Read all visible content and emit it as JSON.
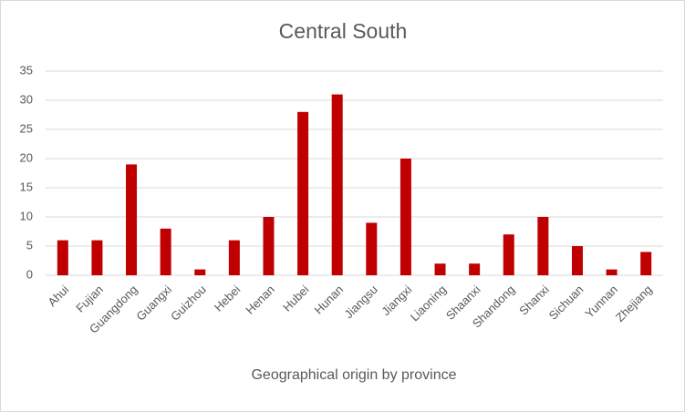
{
  "chart_data": {
    "type": "bar",
    "title": "Central South",
    "x_label": "Geographical origin by province",
    "categories": [
      "Ahui",
      "Fujian",
      "Guangdong",
      "Guangxi",
      "Guizhou",
      "Hebei",
      "Henan",
      "Hubei",
      "Hunan",
      "Jiangsu",
      "Jiangxi",
      "Liaoning",
      "Shaanxi",
      "Shandong",
      "Shanxi",
      "Sichuan",
      "Yunnan",
      "Zhejiang"
    ],
    "values": [
      6,
      6,
      19,
      8,
      1,
      6,
      10,
      28,
      31,
      9,
      20,
      2,
      2,
      7,
      10,
      5,
      1,
      4
    ],
    "color": "#c00000",
    "ylim": [
      0,
      35
    ],
    "yticks": [
      0,
      5,
      10,
      15,
      20,
      25,
      30,
      35
    ],
    "grid": true
  }
}
